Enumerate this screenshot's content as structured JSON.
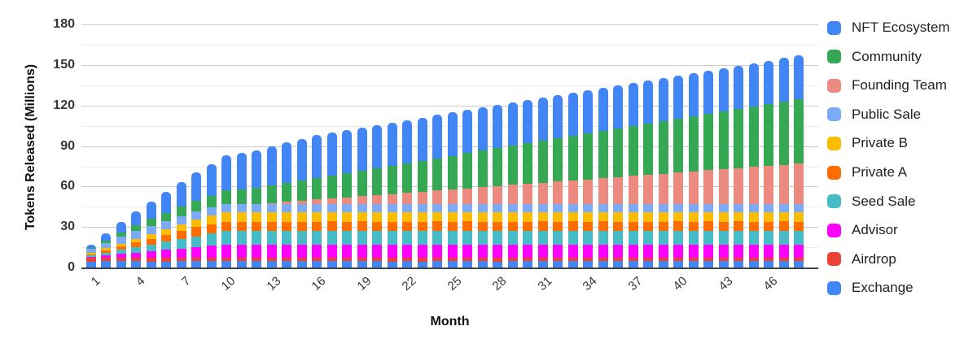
{
  "chart_data": {
    "type": "bar",
    "stacked": true,
    "xlabel": "Month",
    "ylabel": "Tokens Released (Millions)",
    "ylim": [
      0,
      180
    ],
    "y_major_step": 30,
    "y_minor_step": 15,
    "grid": true,
    "x_tick_labels": [
      "1",
      "4",
      "7",
      "10",
      "13",
      "16",
      "19",
      "22",
      "25",
      "28",
      "31",
      "34",
      "37",
      "40",
      "43",
      "46"
    ],
    "months": [
      1,
      2,
      3,
      4,
      5,
      6,
      7,
      8,
      9,
      10,
      11,
      12,
      13,
      14,
      15,
      16,
      17,
      18,
      19,
      20,
      21,
      22,
      23,
      24,
      25,
      26,
      27,
      28,
      29,
      30,
      31,
      32,
      33,
      34,
      35,
      36,
      37,
      38,
      39,
      40,
      41,
      42,
      43,
      44,
      45,
      46,
      47,
      48
    ],
    "legend": {
      "position": "right",
      "order_top_to_bottom": [
        "NFT Ecosystem",
        "Community",
        "Founding Team",
        "Public Sale",
        "Private B",
        "Private A",
        "Seed Sale",
        "Advisor",
        "Airdrop",
        "Exchange"
      ]
    },
    "style": {
      "background": "#ffffff",
      "major_grid_color": "#cccccc",
      "minor_grid_color": "#ebebeb",
      "axis_line_color": "#424242"
    },
    "series": [
      {
        "name": "Exchange",
        "color": "#4285F4",
        "values": [
          4.5,
          4.5,
          4.5,
          4.5,
          4.5,
          4.5,
          4.5,
          4.5,
          4.5,
          4.5,
          4.5,
          4.5,
          4.5,
          4.5,
          4.5,
          4.5,
          4.5,
          4.5,
          4.5,
          4.5,
          4.5,
          4.5,
          4.5,
          4.5,
          4.5,
          4.5,
          4.5,
          4.5,
          4.5,
          4.5,
          4.5,
          4.5,
          4.5,
          4.5,
          4.5,
          4.5,
          4.5,
          4.5,
          4.5,
          4.5,
          4.5,
          4.5,
          4.5,
          4.5,
          4.5,
          4.5,
          4.5,
          4.5
        ]
      },
      {
        "name": "Airdrop",
        "color": "#EA4335",
        "values": [
          2.5,
          2.5,
          2.5,
          2.5,
          2.5,
          2.5,
          2.5,
          2.5,
          2.5,
          2.5,
          2.5,
          2.5,
          2.5,
          2.5,
          2.5,
          2.5,
          2.5,
          2.5,
          2.5,
          2.5,
          2.5,
          2.5,
          2.5,
          2.5,
          2.5,
          2.5,
          2.5,
          2.5,
          2.5,
          2.5,
          2.5,
          2.5,
          2.5,
          2.5,
          2.5,
          2.5,
          2.5,
          2.5,
          2.5,
          2.5,
          2.5,
          2.5,
          2.5,
          2.5,
          2.5,
          2.5,
          2.5,
          2.5
        ]
      },
      {
        "name": "Advisor",
        "color": "#FF00FF",
        "values": [
          1,
          2,
          3,
          4,
          5,
          6,
          7,
          8,
          9,
          10,
          10,
          10,
          10,
          10,
          10,
          10,
          10,
          10,
          10,
          10,
          10,
          10,
          10,
          10,
          10,
          10,
          10,
          10,
          10,
          10,
          10,
          10,
          10,
          10,
          10,
          10,
          10,
          10,
          10,
          10,
          10,
          10,
          10,
          10,
          10,
          10,
          10,
          10
        ]
      },
      {
        "name": "Seed Sale",
        "color": "#46BDC6",
        "values": [
          1,
          2,
          3,
          4,
          5,
          6,
          7,
          8,
          9,
          10,
          10,
          10,
          10,
          10,
          10,
          10,
          10,
          10,
          10,
          10,
          10,
          10,
          10,
          10,
          10,
          10,
          10,
          10,
          10,
          10,
          10,
          10,
          10,
          10,
          10,
          10,
          10,
          10,
          10,
          10,
          10,
          10,
          10,
          10,
          10,
          10,
          10,
          10
        ]
      },
      {
        "name": "Private A",
        "color": "#FF6D01",
        "values": [
          0.88,
          1.75,
          2.63,
          3.5,
          4.38,
          5.25,
          6.13,
          7,
          7,
          7,
          7,
          7,
          7,
          7,
          7,
          7,
          7,
          7,
          7,
          7,
          7,
          7,
          7,
          7,
          7,
          7,
          7,
          7,
          7,
          7,
          7,
          7,
          7,
          7,
          7,
          7,
          7,
          7,
          7,
          7,
          7,
          7,
          7,
          7,
          7,
          7,
          7,
          7
        ]
      },
      {
        "name": "Private B",
        "color": "#FBBC04",
        "values": [
          0.7,
          1.4,
          2.1,
          2.8,
          3.5,
          4.2,
          4.9,
          5.6,
          6.3,
          7,
          7,
          7,
          7,
          7,
          7,
          7,
          7,
          7,
          7,
          7,
          7,
          7,
          7,
          7,
          7,
          7,
          7,
          7,
          7,
          7,
          7,
          7,
          7,
          7,
          7,
          7,
          7,
          7,
          7,
          7,
          7,
          7,
          7,
          7,
          7,
          7,
          7,
          7
        ]
      },
      {
        "name": "Public Sale",
        "color": "#7BAAF7",
        "values": [
          3,
          4,
          5,
          6,
          6,
          6,
          6,
          6,
          6,
          6,
          6,
          6,
          6,
          6,
          6,
          6,
          6,
          6,
          6,
          6,
          6,
          6,
          6,
          6,
          6,
          6,
          6,
          6,
          6,
          6,
          6,
          6,
          6,
          6,
          6,
          6,
          6,
          6,
          6,
          6,
          6,
          6,
          6,
          6,
          6,
          6,
          6,
          6
        ]
      },
      {
        "name": "Founding Team",
        "color": "#EC8A80",
        "values": [
          0,
          0,
          0,
          0,
          0,
          0,
          0,
          0,
          0,
          0,
          0,
          0,
          0.83,
          1.67,
          2.5,
          3.33,
          4.17,
          5,
          5.83,
          6.67,
          7.5,
          8.33,
          9.17,
          10,
          10.83,
          11.67,
          12.5,
          13.33,
          14.17,
          15,
          15.83,
          16.67,
          17.5,
          18.33,
          19.17,
          20,
          20.83,
          21.67,
          22.5,
          23.33,
          24.17,
          25,
          25.83,
          26.67,
          27.5,
          28.33,
          29.17,
          30
        ]
      },
      {
        "name": "Community",
        "color": "#34A853",
        "values": [
          1,
          2,
          3,
          4,
          5,
          6,
          7,
          8,
          9,
          10,
          11,
          12,
          13,
          14,
          15,
          16,
          17,
          18,
          19,
          20,
          21,
          22,
          23,
          24,
          25,
          26,
          27,
          28,
          29,
          30,
          31,
          32,
          33,
          34,
          35,
          36,
          37,
          38,
          39,
          40,
          41,
          42,
          43,
          44,
          45,
          46,
          47,
          48
        ]
      },
      {
        "name": "NFT Ecosystem",
        "color": "#4285F4",
        "values": [
          2.6,
          5.2,
          7.8,
          10.4,
          13,
          15.6,
          18.2,
          20.8,
          23.4,
          26,
          27,
          28,
          29,
          30,
          31,
          32,
          32,
          32,
          32,
          32,
          32,
          32,
          32,
          32,
          32,
          32,
          32,
          32,
          32,
          32,
          32,
          32,
          32,
          32,
          32,
          32,
          32,
          32,
          32,
          32,
          32,
          32,
          32,
          32,
          32,
          32,
          32,
          32
        ]
      }
    ]
  }
}
